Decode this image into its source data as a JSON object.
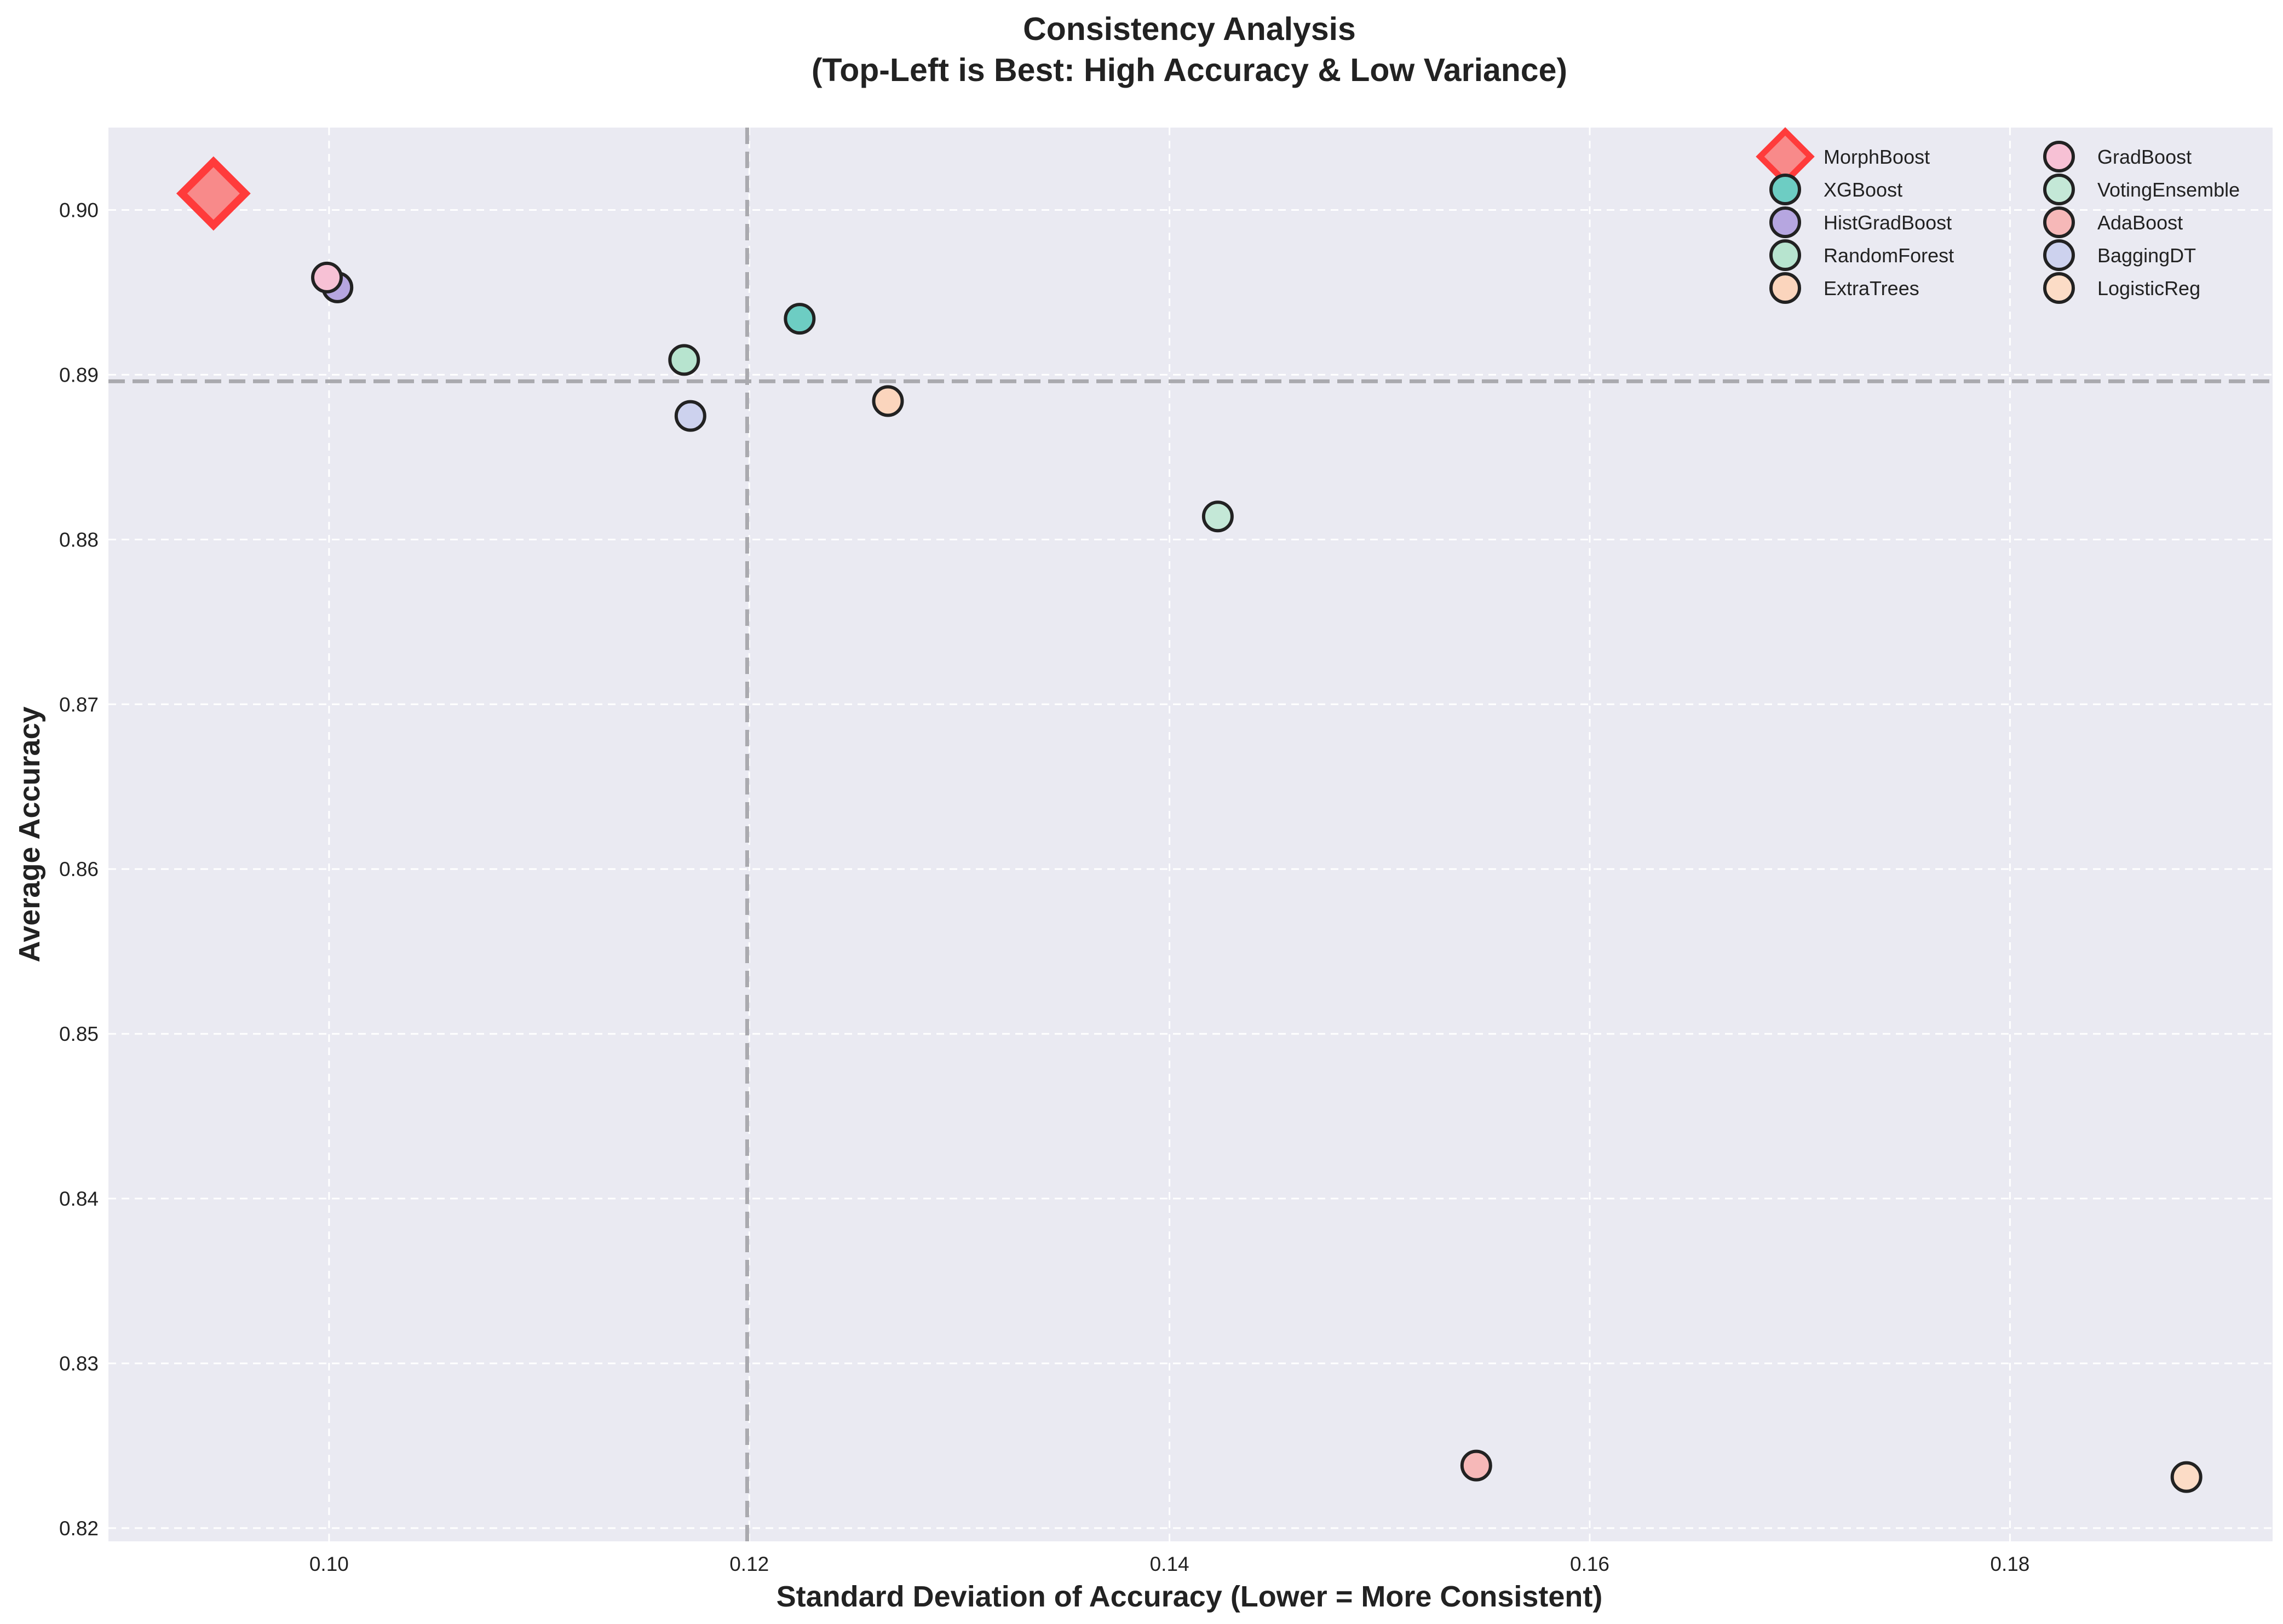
{
  "chart_data": {
    "type": "scatter",
    "title": "Consistency Analysis",
    "subtitle": "(Top-Left is Best: High Accuracy & Low Variance)",
    "xlabel": "Standard Deviation of Accuracy (Lower = More Consistent)",
    "ylabel": "Average Accuracy",
    "xlim": [
      0.0895,
      0.1925
    ],
    "ylim": [
      0.8192,
      0.905
    ],
    "xticks": [
      0.1,
      0.12,
      0.14,
      0.16,
      0.18
    ],
    "xtick_labels": [
      "0.10",
      "0.12",
      "0.14",
      "0.16",
      "0.18"
    ],
    "yticks": [
      0.82,
      0.83,
      0.84,
      0.85,
      0.86,
      0.87,
      0.88,
      0.89,
      0.9
    ],
    "ytick_labels": [
      "0.82",
      "0.83",
      "0.84",
      "0.85",
      "0.86",
      "0.87",
      "0.88",
      "0.89",
      "0.90"
    ],
    "grid": true,
    "legend_position": "top-right",
    "legend_columns": 2,
    "reference_lines": {
      "vertical_x": 0.1199,
      "horizontal_y": 0.8896,
      "style": "dashed",
      "color": "#aaaaaf"
    },
    "background_color": "#eaeaf2",
    "series": [
      {
        "name": "MorphBoost",
        "x": 0.0945,
        "y": 0.901,
        "color": "#f88a8a",
        "edge": "#ff3b3b",
        "marker": "diamond"
      },
      {
        "name": "XGBoost",
        "x": 0.1224,
        "y": 0.8934,
        "color": "#6dcdc3",
        "edge": "#222222",
        "marker": "circle"
      },
      {
        "name": "HistGradBoost",
        "x": 0.1004,
        "y": 0.8953,
        "color": "#b6a6e0",
        "edge": "#222222",
        "marker": "circle"
      },
      {
        "name": "RandomForest",
        "x": 0.1169,
        "y": 0.8909,
        "color": "#b7e4cf",
        "edge": "#222222",
        "marker": "circle"
      },
      {
        "name": "ExtraTrees",
        "x": 0.1266,
        "y": 0.8884,
        "color": "#fbd5bd",
        "edge": "#222222",
        "marker": "circle"
      },
      {
        "name": "GradBoost",
        "x": 0.0999,
        "y": 0.8959,
        "color": "#f7c1d5",
        "edge": "#222222",
        "marker": "circle"
      },
      {
        "name": "VotingEnsemble",
        "x": 0.1423,
        "y": 0.8814,
        "color": "#c4e8d7",
        "edge": "#222222",
        "marker": "circle"
      },
      {
        "name": "AdaBoost",
        "x": 0.1546,
        "y": 0.8238,
        "color": "#f6b8b8",
        "edge": "#222222",
        "marker": "circle"
      },
      {
        "name": "BaggingDT",
        "x": 0.1172,
        "y": 0.8875,
        "color": "#cdd2ee",
        "edge": "#222222",
        "marker": "circle"
      },
      {
        "name": "LogisticReg",
        "x": 0.1884,
        "y": 0.8231,
        "color": "#fcdcc6",
        "edge": "#222222",
        "marker": "circle"
      }
    ]
  }
}
